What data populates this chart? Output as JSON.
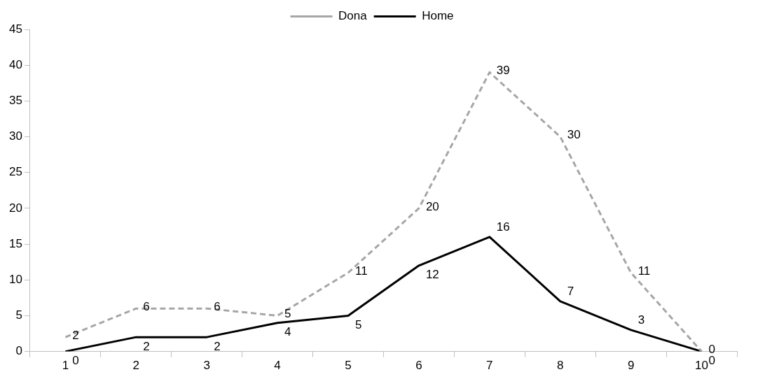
{
  "chart_data": {
    "type": "line",
    "categories": [
      "1",
      "2",
      "3",
      "4",
      "5",
      "6",
      "7",
      "8",
      "9",
      "10"
    ],
    "series": [
      {
        "name": "Dona",
        "color": "#a6a6a6",
        "line_style": "dashed",
        "values": [
          2,
          6,
          6,
          5,
          11,
          20,
          39,
          30,
          11,
          0
        ]
      },
      {
        "name": "Home",
        "color": "#000000",
        "line_style": "solid",
        "values": [
          0,
          2,
          2,
          4,
          5,
          12,
          16,
          7,
          3,
          0
        ]
      }
    ],
    "ylim": [
      0,
      45
    ],
    "yticks": [
      0,
      5,
      10,
      15,
      20,
      25,
      30,
      35,
      40,
      45
    ],
    "grid": false,
    "legend": "top",
    "marker": "none",
    "data_labels": true
  }
}
